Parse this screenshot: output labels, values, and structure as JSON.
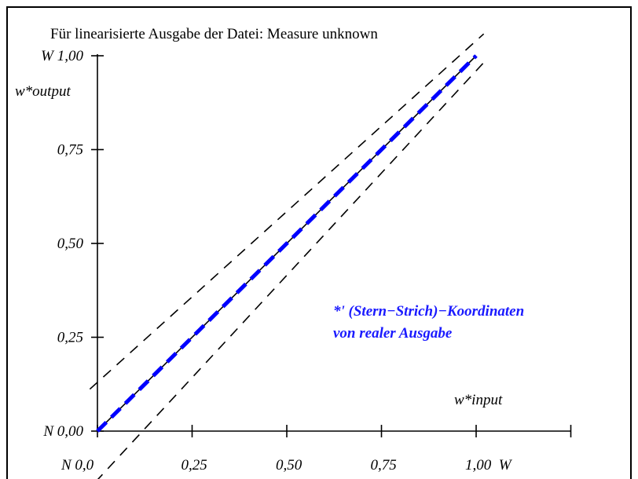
{
  "chart_data": {
    "type": "line",
    "title": "Für linearisierte Ausgabe der Datei: Measure unknown",
    "ylabel": "w*output",
    "xlabel": "w*input",
    "x_ticks": [
      "N 0,0",
      "0,25",
      "0,50",
      "0,75",
      "1,00  W"
    ],
    "y_ticks": [
      "N 0,00",
      "0,25",
      "0,50",
      "0,75",
      "W 1,00"
    ],
    "xlim": [
      0,
      1.25
    ],
    "ylim": [
      0,
      1.0
    ],
    "annotation": [
      "*' (Stern−Strich)−Koordinaten",
      "von realer Ausgabe"
    ],
    "series": [
      {
        "style": "solid",
        "color": "#000000",
        "x": [
          0,
          1.0
        ],
        "y": [
          0,
          1.0
        ]
      },
      {
        "style": "dashed",
        "color": "#0000ff",
        "x": [
          0,
          1.0
        ],
        "y": [
          0,
          1.0
        ]
      },
      {
        "style": "dashed",
        "color": "#000000",
        "x": [
          0,
          1.0
        ],
        "y": [
          0.13,
          1.04
        ]
      },
      {
        "style": "dashed",
        "color": "#000000",
        "x": [
          0,
          1.0
        ],
        "y": [
          -0.13,
          0.96
        ]
      }
    ]
  }
}
